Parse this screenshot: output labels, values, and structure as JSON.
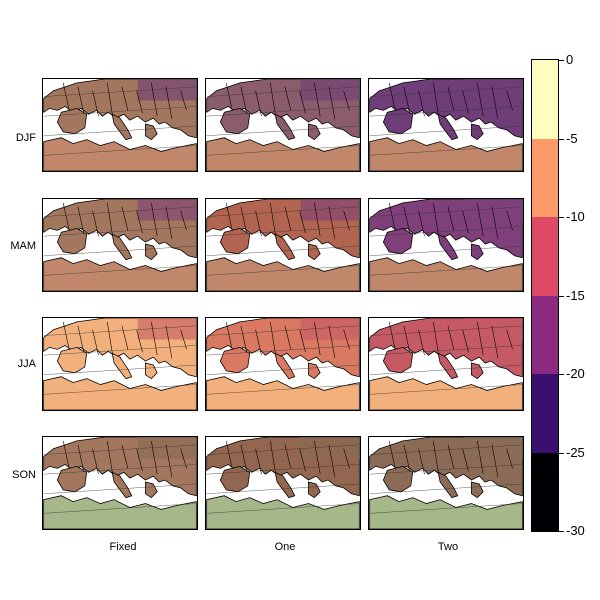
{
  "figure": {
    "rows": [
      "DJF",
      "MAM",
      "JJA",
      "SON"
    ],
    "columns": [
      "Fixed",
      "One",
      "Two"
    ]
  },
  "colorbar": {
    "ticks": [
      "0",
      "-5",
      "-10",
      "-15",
      "-20",
      "-25",
      "-30"
    ],
    "bins": [
      {
        "from": -5,
        "to": 0,
        "color": "#fcfdbf"
      },
      {
        "from": -10,
        "to": -5,
        "color": "#fd9a6a"
      },
      {
        "from": -15,
        "to": -10,
        "color": "#de4968"
      },
      {
        "from": -20,
        "to": -15,
        "color": "#8c2981"
      },
      {
        "from": -25,
        "to": -20,
        "color": "#3b0f70"
      },
      {
        "from": -30,
        "to": -25,
        "color": "#000004"
      }
    ]
  },
  "palette": {
    "sea": "#ffffff",
    "land_muted": "#a3775e",
    "land_light": "#f2b17c",
    "land_green": "#a6b78a"
  }
}
